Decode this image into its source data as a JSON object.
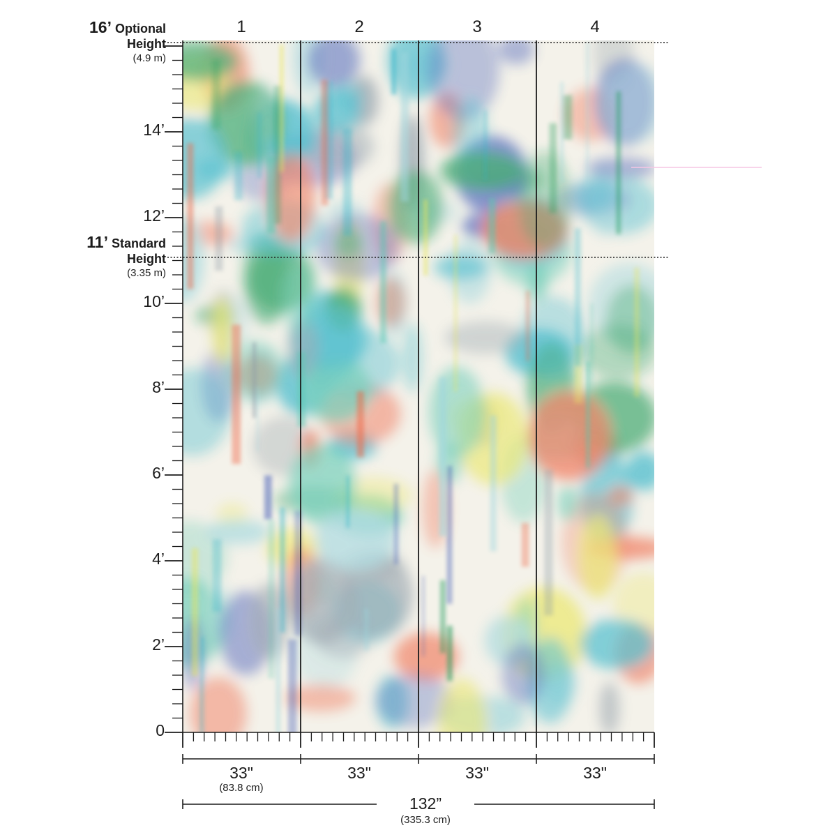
{
  "panels": [
    {
      "number": "1",
      "width": "33\"",
      "width_metric": "(83.8 cm)"
    },
    {
      "number": "2",
      "width": "33\""
    },
    {
      "number": "3",
      "width": "33\""
    },
    {
      "number": "4",
      "width": "33\""
    }
  ],
  "height_labels": [
    "0",
    "2’",
    "4’",
    "6’",
    "8’",
    "10’",
    "12’",
    "14’"
  ],
  "optional_height": {
    "value": "16’",
    "label_line1": "Optional",
    "label_line2": "Height",
    "metric": "(4.9 m)"
  },
  "standard_height": {
    "value": "11’",
    "label_line1": "Standard",
    "label_line2": "Height",
    "metric": "(3.35 m)"
  },
  "total_width": {
    "value": "132”",
    "metric": "(335.3 cm)"
  },
  "colors": {
    "line": "#1b1b1b",
    "paper": "#f4f2ea",
    "watercolor": [
      "#2fb3c9",
      "#58c7b0",
      "#e9e55a",
      "#f06a4a",
      "#8c9aa6",
      "#3d56b5",
      "#1e9b5a",
      "#9fd6de"
    ]
  }
}
